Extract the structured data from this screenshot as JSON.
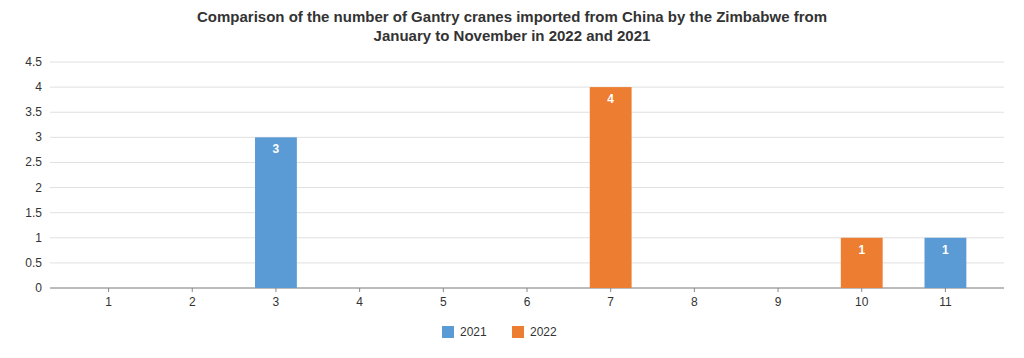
{
  "chart_data": {
    "type": "bar",
    "title": "Comparison of the number of Gantry cranes imported from China by the Zimbabwe from\nJanuary to November in 2022 and 2021",
    "x": [
      1,
      2,
      3,
      4,
      5,
      6,
      7,
      8,
      9,
      10,
      11
    ],
    "series": [
      {
        "name": "2021",
        "color": "#5B9BD5",
        "values": [
          0,
          0,
          3,
          0,
          0,
          0,
          0,
          0,
          0,
          0,
          1
        ],
        "value_labels": [
          null,
          null,
          "3",
          null,
          null,
          null,
          null,
          null,
          null,
          null,
          "1"
        ]
      },
      {
        "name": "2022",
        "color": "#ED7D31",
        "values": [
          0,
          0,
          0,
          0,
          0,
          0,
          4,
          0,
          0,
          1,
          0
        ],
        "value_labels": [
          null,
          null,
          null,
          null,
          null,
          null,
          "4",
          null,
          null,
          "1",
          null
        ]
      }
    ],
    "xlim": [
      0.3,
      11.7
    ],
    "xticks": [
      1,
      2,
      3,
      4,
      5,
      6,
      7,
      8,
      9,
      10,
      11
    ],
    "ylim": [
      0,
      4.5
    ],
    "yticks": [
      0,
      0.5,
      1,
      1.5,
      2,
      2.5,
      3,
      3.5,
      4,
      4.5
    ],
    "grid": true,
    "legend": "bottom",
    "data_labels": true
  }
}
